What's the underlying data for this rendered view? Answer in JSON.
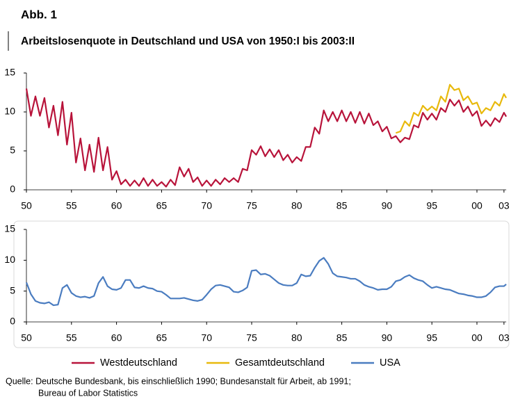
{
  "figure_label": "Abb. 1",
  "title": "Arbeitslosenquote in Deutschland und USA von 1950:I bis 2003:II",
  "source": [
    "Quelle: Deutsche Bundesbank, bis einschließlich 1990;  Bundesanstalt für Arbeit, ab 1991;",
    "Bureau of Labor Statistics"
  ],
  "chart_data": [
    {
      "type": "line",
      "grid": false,
      "xlim": [
        1950,
        2003.25
      ],
      "ylim": [
        0,
        15
      ],
      "yticks": [
        0,
        5,
        10,
        15
      ],
      "xticks": [
        {
          "value": 1950,
          "label": "50"
        },
        {
          "value": 1955,
          "label": "55"
        },
        {
          "value": 1960,
          "label": "60"
        },
        {
          "value": 1965,
          "label": "65"
        },
        {
          "value": 1970,
          "label": "70"
        },
        {
          "value": 1975,
          "label": "75"
        },
        {
          "value": 1980,
          "label": "80"
        },
        {
          "value": 1985,
          "label": "85"
        },
        {
          "value": 1990,
          "label": "90"
        },
        {
          "value": 1995,
          "label": "95"
        },
        {
          "value": 2000,
          "label": "00"
        },
        {
          "value": 2003,
          "label": "03"
        }
      ],
      "x": [
        1950,
        1950.5,
        1951,
        1951.5,
        1952,
        1952.5,
        1953,
        1953.5,
        1954,
        1954.5,
        1955,
        1955.5,
        1956,
        1956.5,
        1957,
        1957.5,
        1958,
        1958.5,
        1959,
        1959.5,
        1960,
        1960.5,
        1961,
        1961.5,
        1962,
        1962.5,
        1963,
        1963.5,
        1964,
        1964.5,
        1965,
        1965.5,
        1966,
        1966.5,
        1967,
        1967.5,
        1968,
        1968.5,
        1969,
        1969.5,
        1970,
        1970.5,
        1971,
        1971.5,
        1972,
        1972.5,
        1973,
        1973.5,
        1974,
        1974.5,
        1975,
        1975.5,
        1976,
        1976.5,
        1977,
        1977.5,
        1978,
        1978.5,
        1979,
        1979.5,
        1980,
        1980.5,
        1981,
        1981.5,
        1982,
        1982.5,
        1983,
        1983.5,
        1984,
        1984.5,
        1985,
        1985.5,
        1986,
        1986.5,
        1987,
        1987.5,
        1988,
        1988.5,
        1989,
        1989.5,
        1990,
        1990.5,
        1991,
        1991.5,
        1992,
        1992.5,
        1993,
        1993.5,
        1994,
        1994.5,
        1995,
        1995.5,
        1996,
        1996.5,
        1997,
        1997.5,
        1998,
        1998.5,
        1999,
        1999.5,
        2000,
        2000.5,
        2001,
        2001.5,
        2002,
        2002.5,
        2003,
        2003.25
      ],
      "series": [
        {
          "name": "Westdeutschland",
          "color": "#b8133a",
          "values": [
            13,
            9.5,
            12,
            9.5,
            11.8,
            8,
            10.8,
            7,
            11.3,
            5.8,
            9.9,
            3.5,
            6.6,
            2.5,
            5.8,
            2.3,
            6.7,
            2.5,
            5.5,
            1.3,
            2.4,
            0.7,
            1.3,
            0.5,
            1.2,
            0.5,
            1.5,
            0.5,
            1.3,
            0.5,
            1.0,
            0.4,
            1.3,
            0.6,
            2.9,
            1.7,
            2.7,
            1.0,
            1.6,
            0.5,
            1.2,
            0.5,
            1.3,
            0.7,
            1.5,
            1.0,
            1.5,
            1.0,
            2.7,
            2.5,
            5.1,
            4.5,
            5.6,
            4.3,
            5.2,
            4.2,
            5.1,
            3.8,
            4.5,
            3.5,
            4.2,
            3.7,
            5.5,
            5.5,
            8.0,
            7.2,
            10.2,
            8.8,
            10.0,
            8.8,
            10.2,
            8.8,
            10.0,
            8.6,
            10.0,
            8.5,
            9.8,
            8.3,
            8.8,
            7.5,
            8.1,
            6.6,
            6.9,
            6.1,
            6.7,
            6.5,
            8.3,
            8.0,
            9.9,
            9.0,
            9.8,
            9.0,
            10.5,
            10.0,
            11.6,
            10.8,
            11.5,
            10.0,
            10.7,
            9.5,
            10.1,
            8.2,
            8.9,
            8.2,
            9.2,
            8.7,
            9.9,
            9.4
          ]
        },
        {
          "name": "Gesamtdeutschland",
          "color": "#e8b90c",
          "values": [
            null,
            null,
            null,
            null,
            null,
            null,
            null,
            null,
            null,
            null,
            null,
            null,
            null,
            null,
            null,
            null,
            null,
            null,
            null,
            null,
            null,
            null,
            null,
            null,
            null,
            null,
            null,
            null,
            null,
            null,
            null,
            null,
            null,
            null,
            null,
            null,
            null,
            null,
            null,
            null,
            null,
            null,
            null,
            null,
            null,
            null,
            null,
            null,
            null,
            null,
            null,
            null,
            null,
            null,
            null,
            null,
            null,
            null,
            null,
            null,
            null,
            null,
            null,
            null,
            null,
            null,
            null,
            null,
            null,
            null,
            null,
            null,
            null,
            null,
            null,
            null,
            null,
            null,
            null,
            null,
            null,
            null,
            7.3,
            7.5,
            8.8,
            8.2,
            9.9,
            9.5,
            10.8,
            10.2,
            10.7,
            10.2,
            12.0,
            11.3,
            13.5,
            12.8,
            13.0,
            11.5,
            12.0,
            11.0,
            11.2,
            9.8,
            10.5,
            10.2,
            11.3,
            10.8,
            12.3,
            11.8
          ]
        }
      ]
    },
    {
      "type": "line",
      "grid": false,
      "xlim": [
        1950,
        2003.25
      ],
      "ylim": [
        0,
        15
      ],
      "yticks": [
        0,
        5,
        10,
        15
      ],
      "xticks": [
        {
          "value": 1950,
          "label": "50"
        },
        {
          "value": 1955,
          "label": "55"
        },
        {
          "value": 1960,
          "label": "60"
        },
        {
          "value": 1965,
          "label": "65"
        },
        {
          "value": 1970,
          "label": "70"
        },
        {
          "value": 1975,
          "label": "75"
        },
        {
          "value": 1980,
          "label": "80"
        },
        {
          "value": 1985,
          "label": "85"
        },
        {
          "value": 1990,
          "label": "90"
        },
        {
          "value": 1995,
          "label": "95"
        },
        {
          "value": 2000,
          "label": "00"
        },
        {
          "value": 2003,
          "label": "03"
        }
      ],
      "x": [
        1950,
        1950.5,
        1951,
        1951.5,
        1952,
        1952.5,
        1953,
        1953.5,
        1954,
        1954.5,
        1955,
        1955.5,
        1956,
        1956.5,
        1957,
        1957.5,
        1958,
        1958.5,
        1959,
        1959.5,
        1960,
        1960.5,
        1961,
        1961.5,
        1962,
        1962.5,
        1963,
        1963.5,
        1964,
        1964.5,
        1965,
        1965.5,
        1966,
        1966.5,
        1967,
        1967.5,
        1968,
        1968.5,
        1969,
        1969.5,
        1970,
        1970.5,
        1971,
        1971.5,
        1972,
        1972.5,
        1973,
        1973.5,
        1974,
        1974.5,
        1975,
        1975.5,
        1976,
        1976.5,
        1977,
        1977.5,
        1978,
        1978.5,
        1979,
        1979.5,
        1980,
        1980.5,
        1981,
        1981.5,
        1982,
        1982.5,
        1983,
        1983.5,
        1984,
        1984.5,
        1985,
        1985.5,
        1986,
        1986.5,
        1987,
        1987.5,
        1988,
        1988.5,
        1989,
        1989.5,
        1990,
        1990.5,
        1991,
        1991.5,
        1992,
        1992.5,
        1993,
        1993.5,
        1994,
        1994.5,
        1995,
        1995.5,
        1996,
        1996.5,
        1997,
        1997.5,
        1998,
        1998.5,
        1999,
        1999.5,
        2000,
        2000.5,
        2001,
        2001.5,
        2002,
        2002.5,
        2003,
        2003.25
      ],
      "series": [
        {
          "name": "USA",
          "color": "#4a7cc0",
          "values": [
            6.4,
            4.5,
            3.4,
            3.1,
            3.0,
            3.2,
            2.7,
            2.8,
            5.5,
            6.0,
            4.7,
            4.2,
            4.0,
            4.1,
            3.9,
            4.2,
            6.3,
            7.3,
            5.8,
            5.3,
            5.2,
            5.5,
            6.8,
            6.8,
            5.6,
            5.5,
            5.8,
            5.5,
            5.4,
            5.0,
            4.9,
            4.4,
            3.8,
            3.8,
            3.8,
            3.9,
            3.7,
            3.5,
            3.4,
            3.6,
            4.4,
            5.3,
            5.9,
            6.0,
            5.8,
            5.6,
            4.9,
            4.8,
            5.1,
            5.6,
            8.3,
            8.4,
            7.7,
            7.8,
            7.5,
            6.9,
            6.3,
            6.0,
            5.9,
            5.9,
            6.3,
            7.7,
            7.4,
            7.5,
            8.8,
            9.9,
            10.4,
            9.4,
            7.9,
            7.4,
            7.3,
            7.2,
            7.0,
            7.0,
            6.6,
            6.0,
            5.7,
            5.5,
            5.2,
            5.3,
            5.3,
            5.7,
            6.6,
            6.8,
            7.3,
            7.6,
            7.1,
            6.8,
            6.6,
            6.0,
            5.5,
            5.7,
            5.5,
            5.3,
            5.2,
            4.9,
            4.6,
            4.5,
            4.3,
            4.2,
            4.0,
            4.0,
            4.2,
            4.8,
            5.6,
            5.8,
            5.8,
            6.1
          ]
        }
      ]
    }
  ]
}
